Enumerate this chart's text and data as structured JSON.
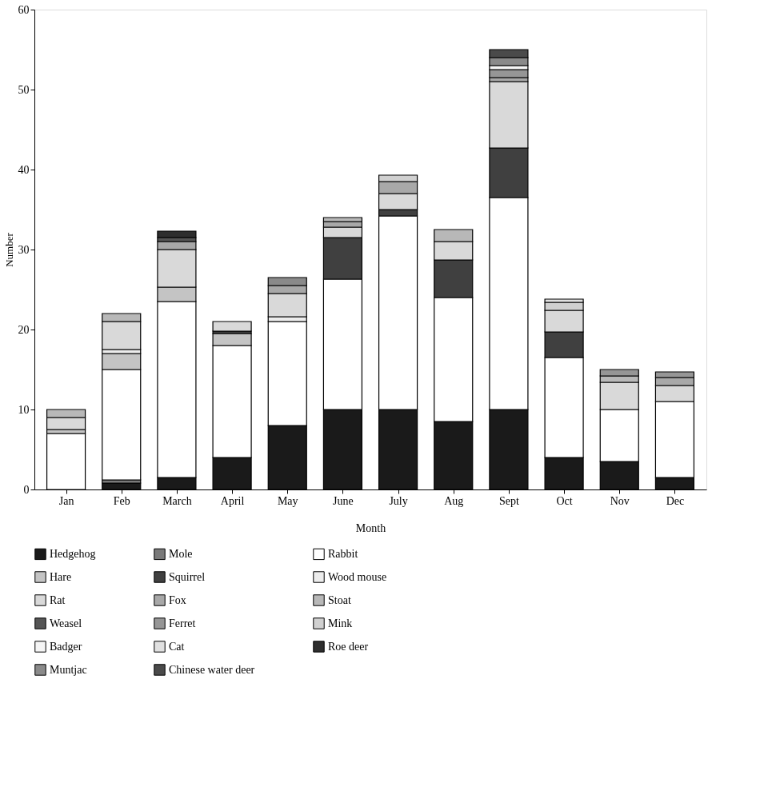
{
  "chart_data": {
    "type": "bar",
    "stacked": true,
    "xlabel": "Month",
    "ylabel": "Number",
    "categories": [
      "Jan",
      "Feb",
      "March",
      "April",
      "May",
      "June",
      "July",
      "Aug",
      "Sept",
      "Oct",
      "Nov",
      "Dec"
    ],
    "ylim": [
      0,
      60
    ],
    "yticks": [
      0,
      10,
      20,
      30,
      40,
      50,
      60
    ],
    "grid": false,
    "legend": "bottom",
    "series": [
      {
        "name": "Hedgehog",
        "color": "#1a1a1a",
        "values": [
          null,
          0.8,
          1.5,
          4,
          8,
          10,
          10,
          8.5,
          10,
          4,
          3.5,
          1.5
        ]
      },
      {
        "name": "Mole",
        "color": "#7a7a7a",
        "values": [
          null,
          0.4,
          null,
          null,
          null,
          null,
          null,
          null,
          null,
          null,
          null,
          null
        ]
      },
      {
        "name": "Rabbit",
        "color": "#ffffff",
        "values": [
          7,
          13.8,
          22,
          14,
          13,
          16.3,
          24.2,
          15.5,
          26.5,
          12.5,
          6.5,
          9.5
        ]
      },
      {
        "name": "Hare",
        "color": "#c4c4c4",
        "values": [
          0.5,
          2,
          1.8,
          1.5,
          null,
          null,
          null,
          null,
          null,
          null,
          null,
          null
        ]
      },
      {
        "name": "Squirrel",
        "color": "#404040",
        "values": [
          null,
          null,
          null,
          0.3,
          null,
          5.2,
          0.8,
          4.7,
          6.2,
          3.2,
          null,
          null
        ]
      },
      {
        "name": "Wood mouse",
        "color": "#ececec",
        "values": [
          null,
          0.5,
          null,
          null,
          0.6,
          null,
          null,
          null,
          null,
          null,
          null,
          null
        ]
      },
      {
        "name": "Rat",
        "color": "#d9d9d9",
        "values": [
          1.5,
          3.5,
          4.7,
          1.2,
          2.9,
          1.3,
          2,
          2.3,
          8.3,
          2.7,
          3.4,
          2
        ]
      },
      {
        "name": "Fox",
        "color": "#a8a8a8",
        "values": [
          null,
          null,
          1,
          null,
          1,
          0.7,
          1.5,
          null,
          0.5,
          null,
          null,
          1
        ]
      },
      {
        "name": "Stoat",
        "color": "#b8b8b8",
        "values": [
          1,
          1,
          null,
          null,
          null,
          0.5,
          null,
          1.5,
          null,
          null,
          0.8,
          null
        ]
      },
      {
        "name": "Weasel",
        "color": "#555555",
        "values": [
          null,
          null,
          0.5,
          null,
          null,
          null,
          null,
          null,
          null,
          null,
          null,
          null
        ]
      },
      {
        "name": "Ferret",
        "color": "#969696",
        "values": [
          null,
          null,
          null,
          null,
          null,
          null,
          null,
          null,
          1,
          null,
          0.8,
          0.7
        ]
      },
      {
        "name": "Mink",
        "color": "#d0d0d0",
        "values": [
          null,
          null,
          null,
          null,
          null,
          null,
          0.8,
          null,
          null,
          1,
          null,
          null
        ]
      },
      {
        "name": "Badger",
        "color": "#f5f5f5",
        "values": [
          null,
          null,
          null,
          null,
          null,
          null,
          null,
          null,
          0.5,
          null,
          null,
          null
        ]
      },
      {
        "name": "Cat",
        "color": "#e0e0e0",
        "values": [
          null,
          null,
          null,
          null,
          null,
          null,
          null,
          null,
          null,
          0.4,
          null,
          null
        ]
      },
      {
        "name": "Roe deer",
        "color": "#2e2e2e",
        "values": [
          null,
          null,
          0.8,
          null,
          null,
          null,
          null,
          null,
          null,
          null,
          null,
          null
        ]
      },
      {
        "name": "Muntjac",
        "color": "#8a8a8a",
        "values": [
          null,
          null,
          null,
          null,
          1,
          null,
          null,
          null,
          1,
          null,
          null,
          null
        ]
      },
      {
        "name": "Chinese water deer",
        "color": "#4a4a4a",
        "values": [
          null,
          null,
          null,
          null,
          null,
          null,
          null,
          null,
          1,
          null,
          null,
          null
        ]
      }
    ]
  }
}
